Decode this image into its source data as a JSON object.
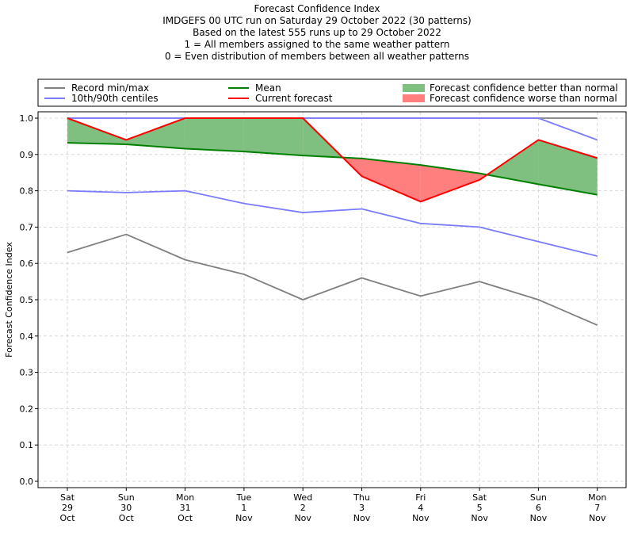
{
  "header": {
    "lines": [
      "Forecast Confidence Index",
      "IMDGEFS 00 UTC run on Saturday 29 October 2022 (30 patterns)",
      "Based on the latest 555 runs up to 29 October 2022",
      "1 = All members assigned to the same weather pattern",
      "0 = Even distribution of members between all weather patterns"
    ]
  },
  "chart_data": {
    "type": "line",
    "title": "Forecast Confidence Index",
    "ylabel": "Forecast Confidence Index",
    "xlabel": "",
    "ylim": [
      0.0,
      1.0
    ],
    "yticks": [
      "0.0",
      "0.1",
      "0.2",
      "0.3",
      "0.4",
      "0.5",
      "0.6",
      "0.7",
      "0.8",
      "0.9",
      "1.0"
    ],
    "grid": true,
    "legend_position": "top",
    "categories": [
      [
        "Sat",
        "29",
        "Oct"
      ],
      [
        "Sun",
        "30",
        "Oct"
      ],
      [
        "Mon",
        "31",
        "Oct"
      ],
      [
        "Tue",
        "1",
        "Nov"
      ],
      [
        "Wed",
        "2",
        "Nov"
      ],
      [
        "Thu",
        "3",
        "Nov"
      ],
      [
        "Fri",
        "4",
        "Nov"
      ],
      [
        "Sat",
        "5",
        "Nov"
      ],
      [
        "Sun",
        "6",
        "Nov"
      ],
      [
        "Mon",
        "7",
        "Nov"
      ]
    ],
    "series": [
      {
        "name": "Record max",
        "key": "record_max",
        "color": "#808080",
        "values": [
          1.0,
          1.0,
          1.0,
          1.0,
          1.0,
          1.0,
          1.0,
          1.0,
          1.0,
          1.0
        ]
      },
      {
        "name": "Record min",
        "key": "record_min",
        "color": "#808080",
        "values": [
          0.63,
          0.68,
          0.61,
          0.57,
          0.5,
          0.56,
          0.51,
          0.55,
          0.5,
          0.43
        ]
      },
      {
        "name": "90th centile",
        "key": "p90",
        "color": "#7b7bff",
        "values": [
          1.0,
          1.0,
          1.0,
          1.0,
          1.0,
          1.0,
          1.0,
          1.0,
          1.0,
          0.94
        ]
      },
      {
        "name": "10th centile",
        "key": "p10",
        "color": "#7b7bff",
        "values": [
          0.8,
          0.795,
          0.8,
          0.765,
          0.74,
          0.75,
          0.71,
          0.7,
          0.66,
          0.62
        ]
      },
      {
        "name": "Mean",
        "key": "mean",
        "color": "#008000",
        "values": [
          0.932,
          0.928,
          0.916,
          0.908,
          0.897,
          0.889,
          0.871,
          0.848,
          0.818,
          0.789
        ]
      },
      {
        "name": "Current forecast",
        "key": "current",
        "color": "#ff0000",
        "values": [
          1.0,
          0.94,
          1.0,
          1.0,
          1.0,
          0.84,
          0.77,
          0.83,
          0.94,
          0.89
        ]
      }
    ],
    "legend": [
      {
        "label": "Record min/max",
        "kind": "line",
        "color": "#808080"
      },
      {
        "label": "10th/90th centiles",
        "kind": "line",
        "color": "#7b7bff"
      },
      {
        "label": "Mean",
        "kind": "line",
        "color": "#008000"
      },
      {
        "label": "Current forecast",
        "kind": "line",
        "color": "#ff0000"
      },
      {
        "label": "Forecast confidence better than normal",
        "kind": "patch",
        "color": "#7fbf7f"
      },
      {
        "label": "Forecast confidence worse than normal",
        "kind": "patch",
        "color": "#ff7f7f"
      }
    ],
    "fill_better_color": "#7fbf7f",
    "fill_worse_color": "#ff7f7f"
  }
}
